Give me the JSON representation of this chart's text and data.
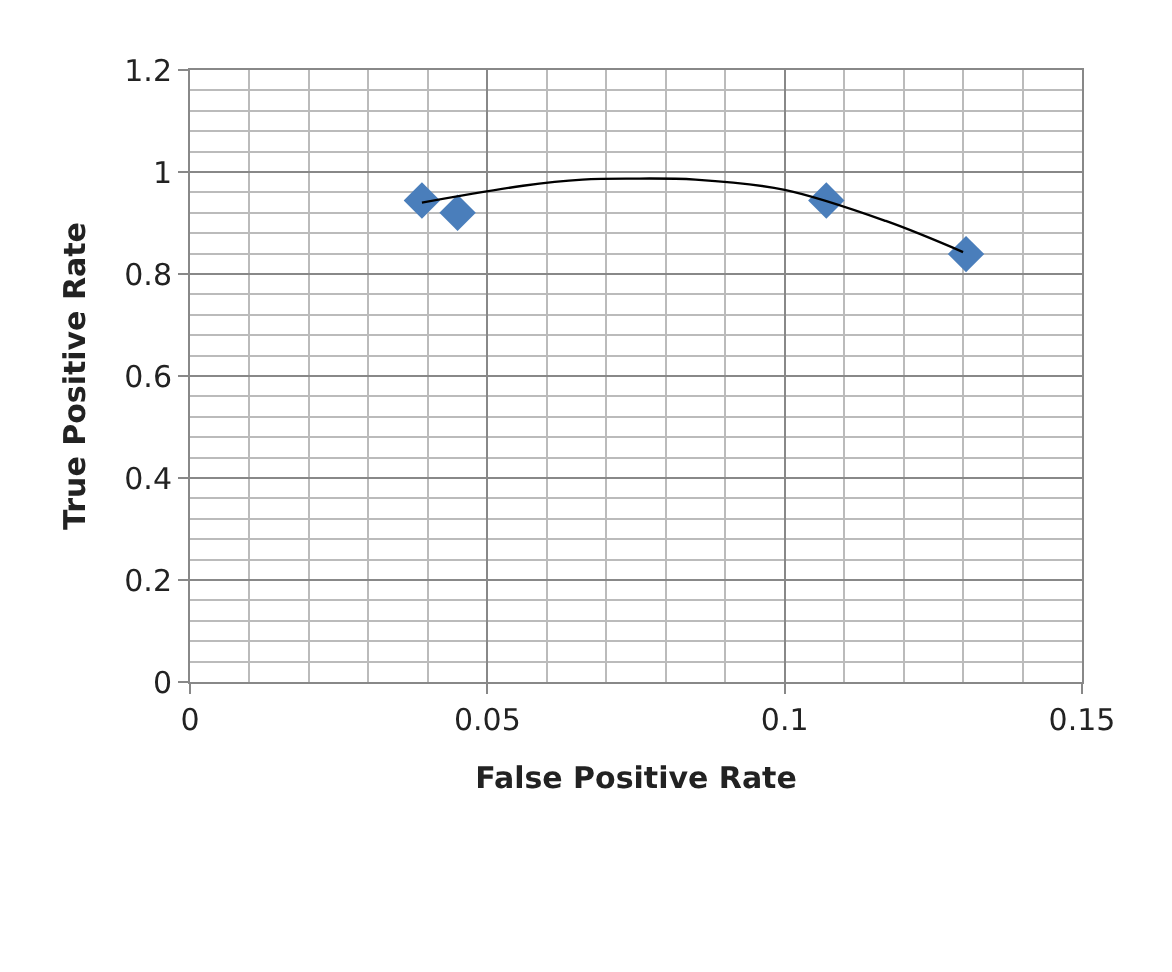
{
  "chart_data": {
    "type": "scatter",
    "xlabel": "False Positive Rate",
    "ylabel": "True Positive Rate",
    "xlim": [
      0,
      0.15
    ],
    "xticks": [
      0,
      0.05,
      0.1,
      0.15
    ],
    "ylim": [
      0,
      1.2
    ],
    "yticks": [
      0,
      0.2,
      0.4,
      0.6,
      0.8,
      1,
      1.2
    ],
    "grid": true,
    "marker": "diamond",
    "series": [
      {
        "color": "#4a7ebb",
        "x": [
          0.039,
          0.045,
          0.107,
          0.1305
        ],
        "values": [
          0.944,
          0.92,
          0.944,
          0.839
        ]
      },
      {
        "type": "line",
        "color": "#000000",
        "marker": "none",
        "line_style": "solid",
        "x": [
          0.039,
          0.056,
          0.066,
          0.074,
          0.085,
          0.1,
          0.117,
          0.13
        ],
        "values": [
          0.94,
          0.973,
          0.985,
          0.987,
          0.985,
          0.965,
          0.904,
          0.843
        ]
      }
    ]
  }
}
